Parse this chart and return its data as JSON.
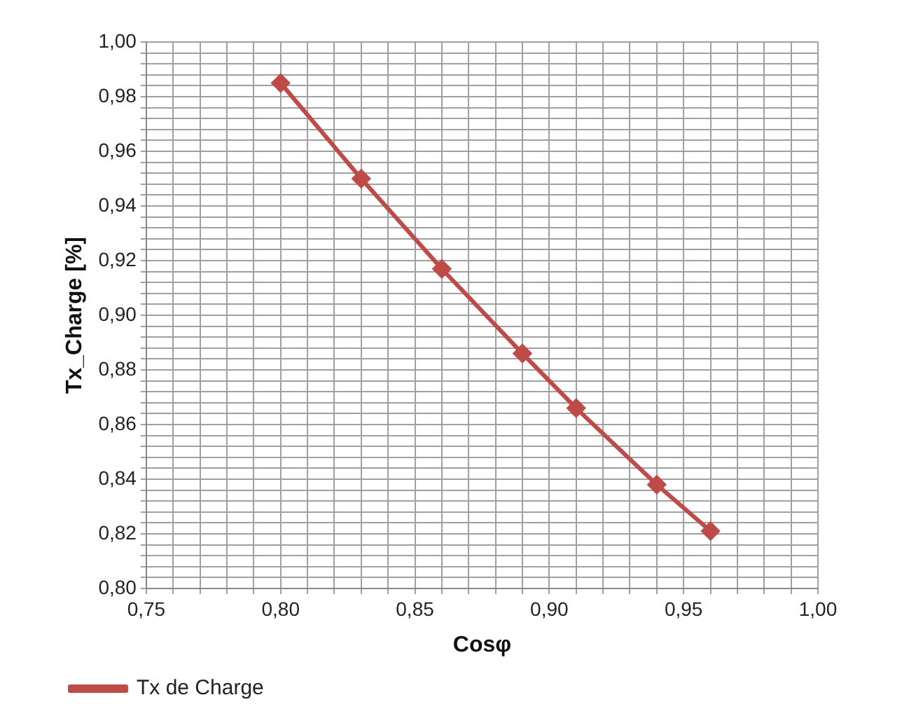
{
  "chart_data": {
    "type": "line",
    "xlabel": "Cosφ",
    "ylabel": "Tx_Charge [%]",
    "x": [
      0.8,
      0.83,
      0.86,
      0.89,
      0.91,
      0.94,
      0.96
    ],
    "series": [
      {
        "name": "Tx de Charge",
        "color": "#be4b48",
        "values": [
          0.985,
          0.95,
          0.917,
          0.886,
          0.866,
          0.838,
          0.821
        ]
      }
    ],
    "xlim": [
      0.75,
      1.0
    ],
    "xticks": [
      {
        "value": 0.75,
        "label": "0,75"
      },
      {
        "value": 0.76,
        "label": null
      },
      {
        "value": 0.77,
        "label": null
      },
      {
        "value": 0.78,
        "label": null
      },
      {
        "value": 0.79,
        "label": null
      },
      {
        "value": 0.8,
        "label": "0,80"
      },
      {
        "value": 0.81,
        "label": null
      },
      {
        "value": 0.82,
        "label": null
      },
      {
        "value": 0.83,
        "label": null
      },
      {
        "value": 0.84,
        "label": null
      },
      {
        "value": 0.85,
        "label": "0,85"
      },
      {
        "value": 0.86,
        "label": null
      },
      {
        "value": 0.87,
        "label": null
      },
      {
        "value": 0.88,
        "label": null
      },
      {
        "value": 0.89,
        "label": null
      },
      {
        "value": 0.9,
        "label": "0,90"
      },
      {
        "value": 0.91,
        "label": null
      },
      {
        "value": 0.92,
        "label": null
      },
      {
        "value": 0.93,
        "label": null
      },
      {
        "value": 0.94,
        "label": null
      },
      {
        "value": 0.95,
        "label": "0,95"
      },
      {
        "value": 0.96,
        "label": null
      },
      {
        "value": 0.97,
        "label": null
      },
      {
        "value": 0.98,
        "label": null
      },
      {
        "value": 0.99,
        "label": null
      },
      {
        "value": 1.0,
        "label": "1,00"
      }
    ],
    "ylim": [
      0.8,
      1.0
    ],
    "yticks": [
      {
        "value": 0.8,
        "label": "0,80"
      },
      {
        "value": 0.804,
        "label": null
      },
      {
        "value": 0.808,
        "label": null
      },
      {
        "value": 0.812,
        "label": null
      },
      {
        "value": 0.816,
        "label": null
      },
      {
        "value": 0.82,
        "label": "0,82"
      },
      {
        "value": 0.824,
        "label": null
      },
      {
        "value": 0.828,
        "label": null
      },
      {
        "value": 0.832,
        "label": null
      },
      {
        "value": 0.836,
        "label": null
      },
      {
        "value": 0.84,
        "label": "0,84"
      },
      {
        "value": 0.844,
        "label": null
      },
      {
        "value": 0.848,
        "label": null
      },
      {
        "value": 0.852,
        "label": null
      },
      {
        "value": 0.856,
        "label": null
      },
      {
        "value": 0.86,
        "label": "0,86"
      },
      {
        "value": 0.864,
        "label": null
      },
      {
        "value": 0.868,
        "label": null
      },
      {
        "value": 0.872,
        "label": null
      },
      {
        "value": 0.876,
        "label": null
      },
      {
        "value": 0.88,
        "label": "0,88"
      },
      {
        "value": 0.884,
        "label": null
      },
      {
        "value": 0.888,
        "label": null
      },
      {
        "value": 0.892,
        "label": null
      },
      {
        "value": 0.896,
        "label": null
      },
      {
        "value": 0.9,
        "label": "0,90"
      },
      {
        "value": 0.904,
        "label": null
      },
      {
        "value": 0.908,
        "label": null
      },
      {
        "value": 0.912,
        "label": null
      },
      {
        "value": 0.916,
        "label": null
      },
      {
        "value": 0.92,
        "label": "0,92"
      },
      {
        "value": 0.924,
        "label": null
      },
      {
        "value": 0.928,
        "label": null
      },
      {
        "value": 0.932,
        "label": null
      },
      {
        "value": 0.936,
        "label": null
      },
      {
        "value": 0.94,
        "label": "0,94"
      },
      {
        "value": 0.944,
        "label": null
      },
      {
        "value": 0.948,
        "label": null
      },
      {
        "value": 0.952,
        "label": null
      },
      {
        "value": 0.956,
        "label": null
      },
      {
        "value": 0.96,
        "label": "0,96"
      },
      {
        "value": 0.964,
        "label": null
      },
      {
        "value": 0.968,
        "label": null
      },
      {
        "value": 0.972,
        "label": null
      },
      {
        "value": 0.976,
        "label": null
      },
      {
        "value": 0.98,
        "label": "0,98"
      },
      {
        "value": 0.984,
        "label": null
      },
      {
        "value": 0.988,
        "label": null
      },
      {
        "value": 0.992,
        "label": null
      },
      {
        "value": 0.996,
        "label": null
      },
      {
        "value": 1.0,
        "label": "1,00"
      }
    ],
    "grid": true,
    "legend": "bottom left",
    "marker": "diamond",
    "line_style": "solid"
  }
}
